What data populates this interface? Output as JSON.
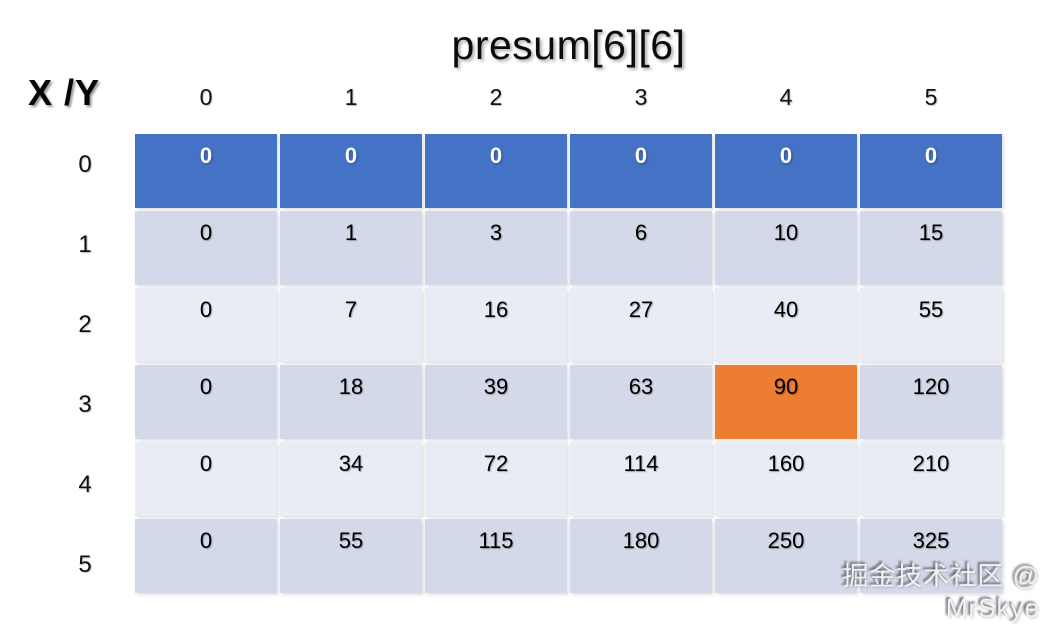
{
  "title": "presum[6][6]",
  "axis_corner_label": "X /Y",
  "column_headers": [
    "0",
    "1",
    "2",
    "3",
    "4",
    "5"
  ],
  "rows": [
    {
      "label": "0",
      "values": [
        "0",
        "0",
        "0",
        "0",
        "0",
        "0"
      ]
    },
    {
      "label": "1",
      "values": [
        "0",
        "1",
        "3",
        "6",
        "10",
        "15"
      ]
    },
    {
      "label": "2",
      "values": [
        "0",
        "7",
        "16",
        "27",
        "40",
        "55"
      ]
    },
    {
      "label": "3",
      "values": [
        "0",
        "18",
        "39",
        "63",
        "90",
        "120"
      ]
    },
    {
      "label": "4",
      "values": [
        "0",
        "34",
        "72",
        "114",
        "160",
        "210"
      ]
    },
    {
      "label": "5",
      "values": [
        "0",
        "55",
        "115",
        "180",
        "250",
        "325"
      ]
    }
  ],
  "highlight_cell": {
    "row": 3,
    "col": 4,
    "value": "90"
  },
  "watermark": "掘金技术社区 @ MrSkye",
  "colors": {
    "header_row_bg": "#4472C4",
    "header_row_text": "#FFFFFF",
    "odd_row_bg": "#D3D9E8",
    "even_row_bg": "#E9ECF4",
    "highlight_bg": "#ED7D31",
    "cell_text": "#000000"
  },
  "chart_data": {
    "type": "table",
    "title": "presum[6][6]",
    "corner_label": "X /Y",
    "x_labels": [
      "0",
      "1",
      "2",
      "3",
      "4",
      "5"
    ],
    "y_labels": [
      "0",
      "1",
      "2",
      "3",
      "4",
      "5"
    ],
    "values": [
      [
        0,
        0,
        0,
        0,
        0,
        0
      ],
      [
        0,
        1,
        3,
        6,
        10,
        15
      ],
      [
        0,
        7,
        16,
        27,
        40,
        55
      ],
      [
        0,
        18,
        39,
        63,
        90,
        120
      ],
      [
        0,
        34,
        72,
        114,
        160,
        210
      ],
      [
        0,
        55,
        115,
        180,
        250,
        325
      ]
    ],
    "highlighted": {
      "row": 3,
      "col": 4,
      "value": 90
    },
    "legend": "none",
    "grid": "white gaps between cells"
  }
}
